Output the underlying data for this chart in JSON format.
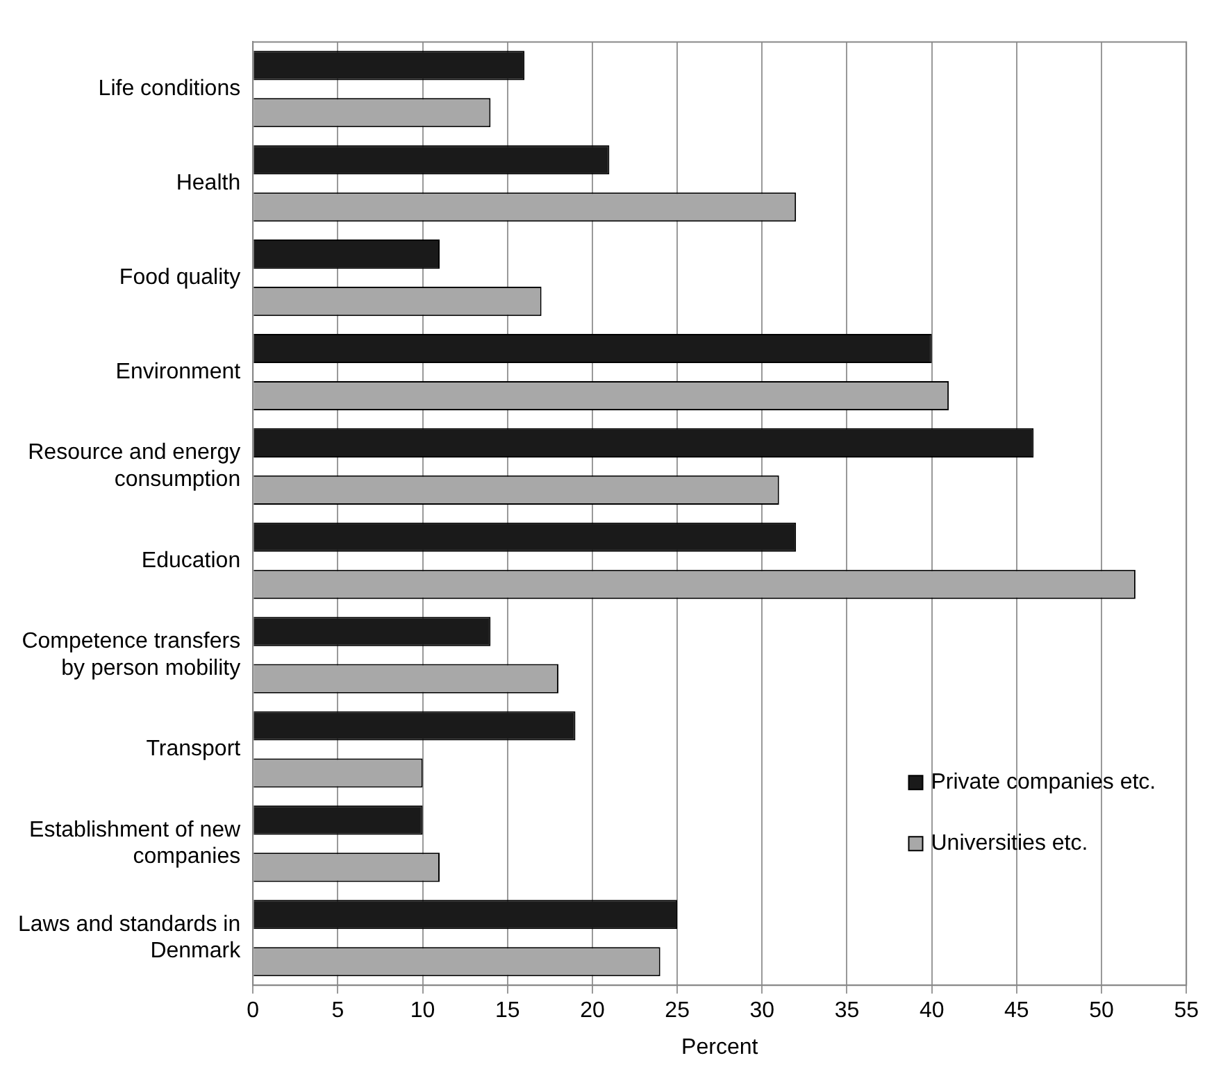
{
  "chart_data": {
    "type": "bar",
    "orientation": "horizontal",
    "xlabel": "Percent",
    "categories": [
      "Life conditions",
      "Health",
      "Food quality",
      "Environment",
      "Resource and energy consumption",
      "Education",
      "Competence transfers by person mobility",
      "Transport",
      "Establishment of new companies",
      "Laws and standards in Denmark"
    ],
    "series": [
      {
        "name": "Private companies etc.",
        "color": "#1a1a1a",
        "values": [
          16,
          21,
          11,
          40,
          46,
          32,
          14,
          19,
          10,
          25
        ]
      },
      {
        "name": "Universities etc.",
        "color": "#a8a8a8",
        "values": [
          14,
          32,
          17,
          41,
          31,
          52,
          18,
          10,
          11,
          24
        ]
      }
    ],
    "xlim": [
      0,
      55
    ],
    "xticks": [
      0,
      5,
      10,
      15,
      20,
      25,
      30,
      35,
      40,
      45,
      50,
      55
    ],
    "grid": "x",
    "legend": "bottom right"
  }
}
